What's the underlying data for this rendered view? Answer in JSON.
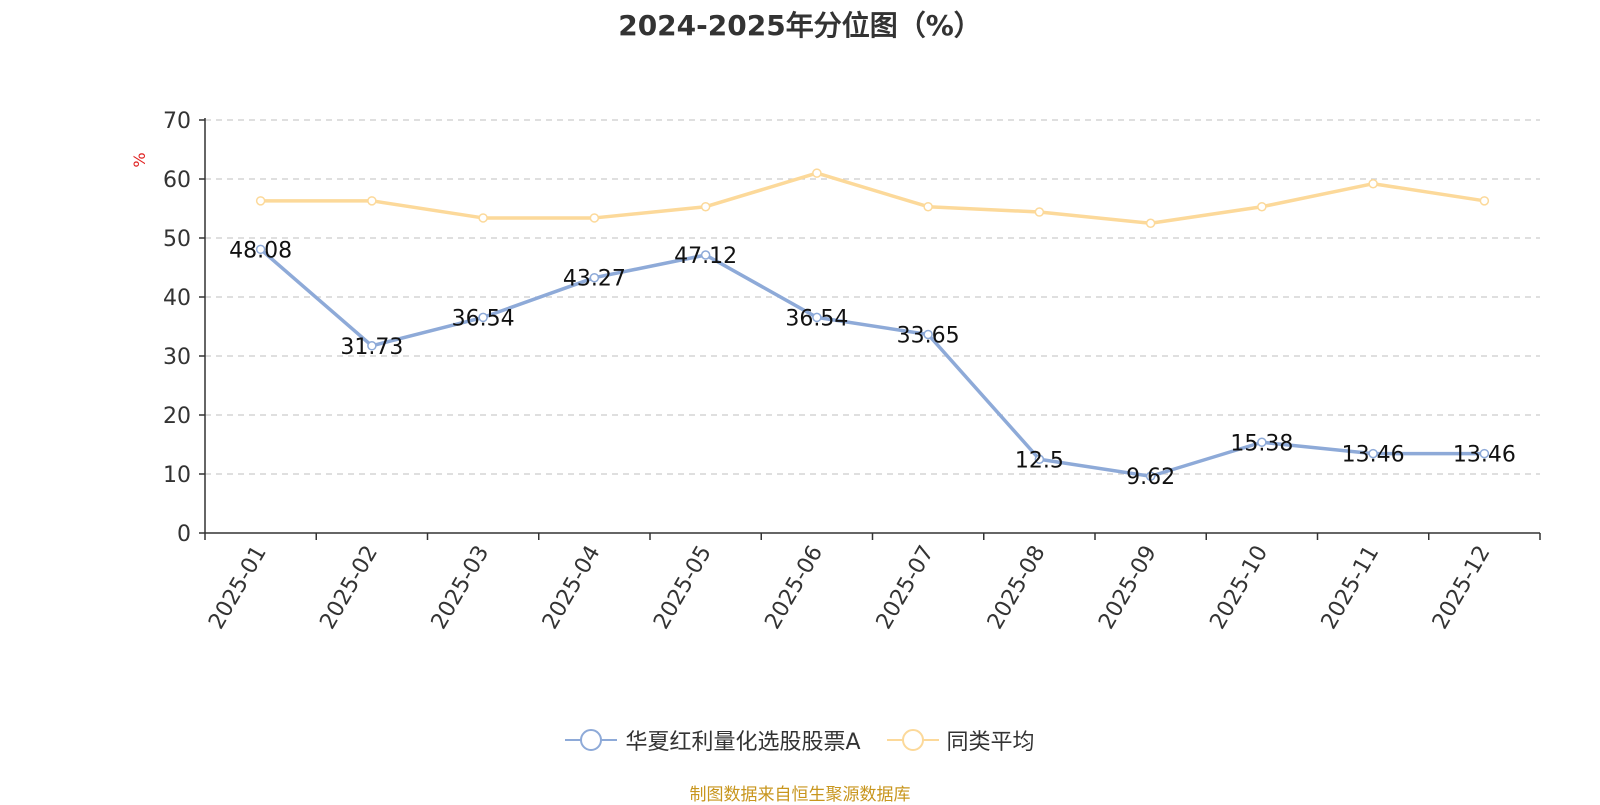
{
  "chart_data": {
    "type": "line",
    "title": "2024-2025年分位图（%）",
    "ylabel": "%",
    "xlabel": "",
    "ylim": [
      0,
      70
    ],
    "yticks": [
      0,
      10,
      20,
      30,
      40,
      50,
      60,
      70
    ],
    "categories": [
      "2025-01",
      "2025-02",
      "2025-03",
      "2025-04",
      "2025-05",
      "2025-06",
      "2025-07",
      "2025-08",
      "2025-09",
      "2025-10",
      "2025-11",
      "2025-12"
    ],
    "series": [
      {
        "name": "华夏红利量化选股股票A",
        "color": "#8eaad8",
        "values": [
          48.08,
          31.73,
          36.54,
          43.27,
          47.12,
          36.54,
          33.65,
          12.5,
          9.62,
          15.38,
          13.46,
          13.46
        ],
        "data_labels": [
          "48.08",
          "31.73",
          "36.54",
          "43.27",
          "47.12",
          "36.54",
          "33.65",
          "12.5",
          "9.62",
          "15.38",
          "13.46",
          "13.46"
        ]
      },
      {
        "name": "同类平均",
        "color": "#fcd99a",
        "values": [
          56.3,
          56.3,
          53.4,
          53.4,
          55.3,
          61.0,
          55.3,
          54.4,
          52.5,
          55.3,
          59.2,
          56.3
        ]
      }
    ],
    "grid": true,
    "legend_position": "bottom-center"
  },
  "source_note": "制图数据来自恒生聚源数据库"
}
